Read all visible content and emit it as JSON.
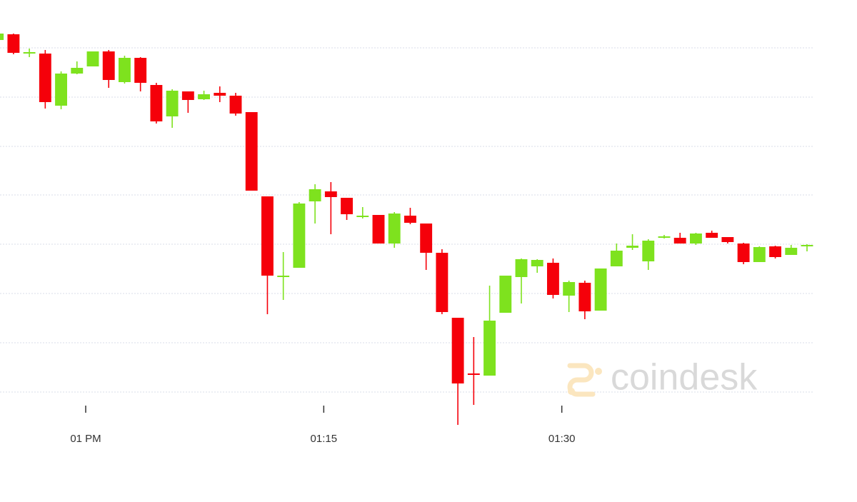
{
  "chart_data": {
    "type": "candlestick",
    "x": [
      -6,
      -5,
      -4,
      -3,
      -2,
      -1,
      0,
      1,
      2,
      3,
      4,
      5,
      6,
      7,
      8,
      9,
      10,
      11,
      12,
      13,
      14,
      15,
      16,
      17,
      18,
      19,
      20,
      21,
      22,
      23,
      24,
      25,
      26,
      27,
      28,
      29,
      30,
      31,
      32,
      33,
      34,
      35,
      36,
      37,
      38,
      39,
      40,
      41,
      42,
      43,
      44,
      45
    ],
    "open": [
      544,
      552,
      526,
      525,
      452,
      497,
      507,
      528,
      485,
      519,
      481,
      437,
      472,
      461,
      470,
      466,
      443,
      325,
      212,
      225,
      318,
      332,
      323,
      297,
      299,
      259,
      298,
      287,
      246,
      155,
      77,
      74,
      162,
      212,
      227,
      232,
      186,
      204,
      165,
      227,
      253,
      234,
      267,
      267,
      259,
      274,
      268,
      259,
      233,
      255,
      243,
      256
    ],
    "high": [
      553,
      553,
      532,
      530,
      500,
      514,
      528,
      530,
      522,
      520,
      484,
      475,
      472,
      473,
      479,
      470,
      443,
      325,
      247,
      317,
      342,
      345,
      323,
      310,
      299,
      303,
      309,
      287,
      251,
      155,
      128,
      200,
      214,
      238,
      237,
      238,
      207,
      207,
      224,
      259,
      272,
      265,
      271,
      274,
      274,
      277,
      268,
      260,
      255,
      256,
      257,
      258
    ],
    "low": [
      544,
      524,
      520,
      448,
      447,
      496,
      507,
      477,
      483,
      472,
      427,
      421,
      442,
      460,
      457,
      438,
      333,
      160,
      180,
      225,
      287,
      272,
      292,
      294,
      259,
      253,
      286,
      222,
      160,
      5,
      33,
      74,
      162,
      175,
      218,
      182,
      163,
      153,
      165,
      227,
      250,
      222,
      266,
      259,
      257,
      267,
      259,
      230,
      233,
      238,
      243,
      248
    ],
    "close": [
      553,
      526,
      527,
      457,
      497,
      505,
      528,
      488,
      519,
      484,
      430,
      473,
      460,
      468,
      466,
      441,
      333,
      214,
      214,
      315,
      335,
      324,
      300,
      298,
      259,
      301,
      288,
      246,
      163,
      63,
      75,
      151,
      214,
      237,
      236,
      187,
      205,
      164,
      224,
      249,
      256,
      263,
      269,
      259,
      273,
      267,
      261,
      233,
      254,
      240,
      253,
      257
    ],
    "up_color": "#7ee21e",
    "down_color": "#f5000a",
    "xlim": [
      -5.4,
      45.9
    ],
    "xticks": [
      {
        "value": 0,
        "label": "01 PM"
      },
      {
        "value": 15,
        "label": "01:15"
      },
      {
        "value": 30,
        "label": "01:30"
      }
    ],
    "ylim": [
      0,
      600
    ],
    "yticks": [
      51,
      120,
      189,
      258,
      327,
      395,
      464,
      533
    ],
    "show_ytick_labels": false,
    "grid": true,
    "watermark": "coindesk"
  }
}
